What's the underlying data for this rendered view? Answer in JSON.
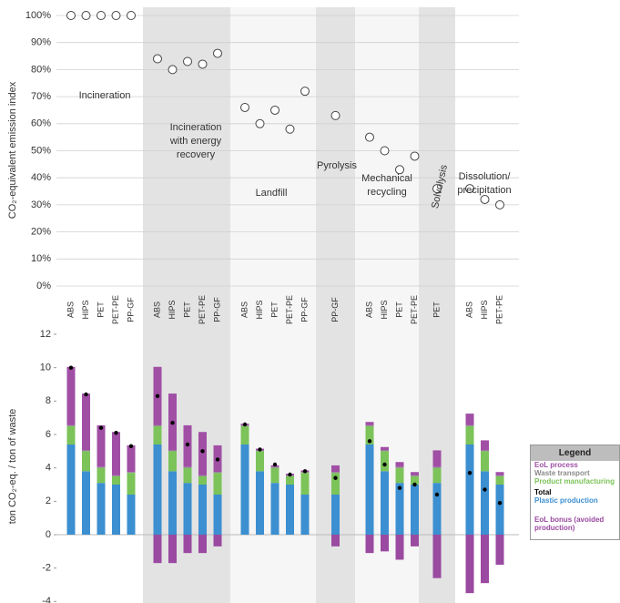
{
  "chart_data": [
    {
      "type": "dot",
      "ylabel": "CO₂-equivalent emission index",
      "ylim": [
        0,
        100
      ],
      "yticks": [
        {
          "value": 0,
          "label": "0%"
        },
        {
          "value": 10,
          "label": "10%"
        },
        {
          "value": 20,
          "label": "20%"
        },
        {
          "value": 30,
          "label": "30%"
        },
        {
          "value": 40,
          "label": "40%"
        },
        {
          "value": 50,
          "label": "50%"
        },
        {
          "value": 60,
          "label": "60%"
        },
        {
          "value": 70,
          "label": "70%"
        },
        {
          "value": 80,
          "label": "80%"
        },
        {
          "value": 90,
          "label": "90%"
        },
        {
          "value": 100,
          "label": "100%"
        }
      ],
      "grid": true,
      "groups": [
        {
          "label_lines": [
            "Incineration"
          ],
          "categories": [
            "ABS",
            "HIPS",
            "PET",
            "PET-PE",
            "PP-GF"
          ],
          "values": [
            100,
            100,
            100,
            100,
            100
          ]
        },
        {
          "label_lines": [
            "Incineration",
            "with energy",
            "recovery"
          ],
          "categories": [
            "ABS",
            "HIPS",
            "PET",
            "PET-PE",
            "PP-GF"
          ],
          "values": [
            84,
            80,
            83,
            82,
            86
          ]
        },
        {
          "label_lines": [
            "Landfill"
          ],
          "categories": [
            "ABS",
            "HIPS",
            "PET",
            "PET-PE",
            "PP-GF"
          ],
          "values": [
            66,
            60,
            65,
            58,
            72
          ]
        },
        {
          "label_lines": [
            "Pyrolysis"
          ],
          "categories": [
            "PP-GF"
          ],
          "values": [
            63
          ]
        },
        {
          "label_lines": [
            "Mechanical",
            "recycling"
          ],
          "categories": [
            "ABS",
            "HIPS",
            "PET",
            "PET-PE"
          ],
          "values": [
            55,
            50,
            43,
            48
          ]
        },
        {
          "label_lines": [
            "Solvolysis"
          ],
          "categories": [
            "PET"
          ],
          "values": [
            36
          ]
        },
        {
          "label_lines": [
            "Dissolution/",
            "precipitation"
          ],
          "categories": [
            "ABS",
            "HIPS",
            "PET-PE"
          ],
          "values": [
            36,
            32,
            30
          ]
        }
      ]
    },
    {
      "type": "stacked_bar",
      "ylabel": "ton CO₂-eq. / ton of waste",
      "ylim": [
        -4,
        12
      ],
      "yticks": [
        -4,
        -2,
        0,
        2,
        4,
        6,
        8,
        10,
        12
      ],
      "legend_title": "Legend",
      "series": [
        {
          "name": "EoL process",
          "color": "#a04fa5",
          "kind": "bar",
          "values": [
            3.5,
            3.4,
            2.5,
            2.6,
            1.6,
            3.5,
            3.4,
            2.5,
            2.6,
            1.6,
            0.1,
            0.1,
            0.1,
            0.1,
            0.1,
            0.4,
            0.2,
            0.2,
            0.3,
            0.2,
            1.0,
            0.7,
            0.6,
            0.2
          ]
        },
        {
          "name": "Waste transport",
          "color": "#8a8a8a",
          "kind": "bar",
          "values": [
            0.05,
            0.05,
            0.05,
            0.05,
            0.05,
            0.05,
            0.05,
            0.05,
            0.05,
            0.05,
            0.05,
            0.05,
            0.05,
            0.05,
            0.05,
            0.05,
            0.05,
            0.05,
            0.05,
            0.05,
            0.05,
            0.05,
            0.05,
            0.05
          ]
        },
        {
          "name": "Product manufacturing",
          "color": "#7cc35a",
          "kind": "bar",
          "values": [
            1.1,
            1.2,
            0.9,
            0.5,
            1.3,
            1.1,
            1.2,
            0.9,
            0.5,
            1.3,
            1.1,
            1.2,
            0.9,
            0.5,
            1.3,
            1.3,
            1.1,
            1.2,
            0.9,
            0.5,
            0.9,
            1.1,
            1.2,
            0.5
          ]
        },
        {
          "name": "Total",
          "color": "#000000",
          "kind": "dot",
          "values": [
            10.0,
            8.4,
            6.4,
            6.1,
            5.3,
            8.3,
            6.7,
            5.4,
            5.0,
            4.5,
            6.6,
            5.1,
            4.2,
            3.6,
            3.8,
            3.4,
            5.6,
            4.2,
            2.8,
            3.0,
            2.4,
            3.7,
            2.7,
            1.9
          ]
        },
        {
          "name": "Plastic production",
          "color": "#3c8fd0",
          "kind": "bar",
          "values": [
            5.4,
            3.8,
            3.1,
            3.0,
            2.4,
            5.4,
            3.8,
            3.1,
            3.0,
            2.4,
            5.4,
            3.8,
            3.1,
            3.0,
            2.4,
            2.4,
            5.4,
            3.8,
            3.1,
            3.0,
            3.1,
            5.4,
            3.8,
            3.0
          ]
        },
        {
          "name": "EoL bonus (avoided production)",
          "color": "#9a4aa0",
          "kind": "bar",
          "values": [
            0,
            0,
            0,
            0,
            0,
            -1.7,
            -1.7,
            -1.1,
            -1.1,
            -0.7,
            0,
            0,
            0,
            0,
            0,
            -0.7,
            -1.1,
            -1.0,
            -1.5,
            -0.7,
            -2.6,
            -3.5,
            -2.9,
            -1.8
          ]
        }
      ]
    }
  ]
}
